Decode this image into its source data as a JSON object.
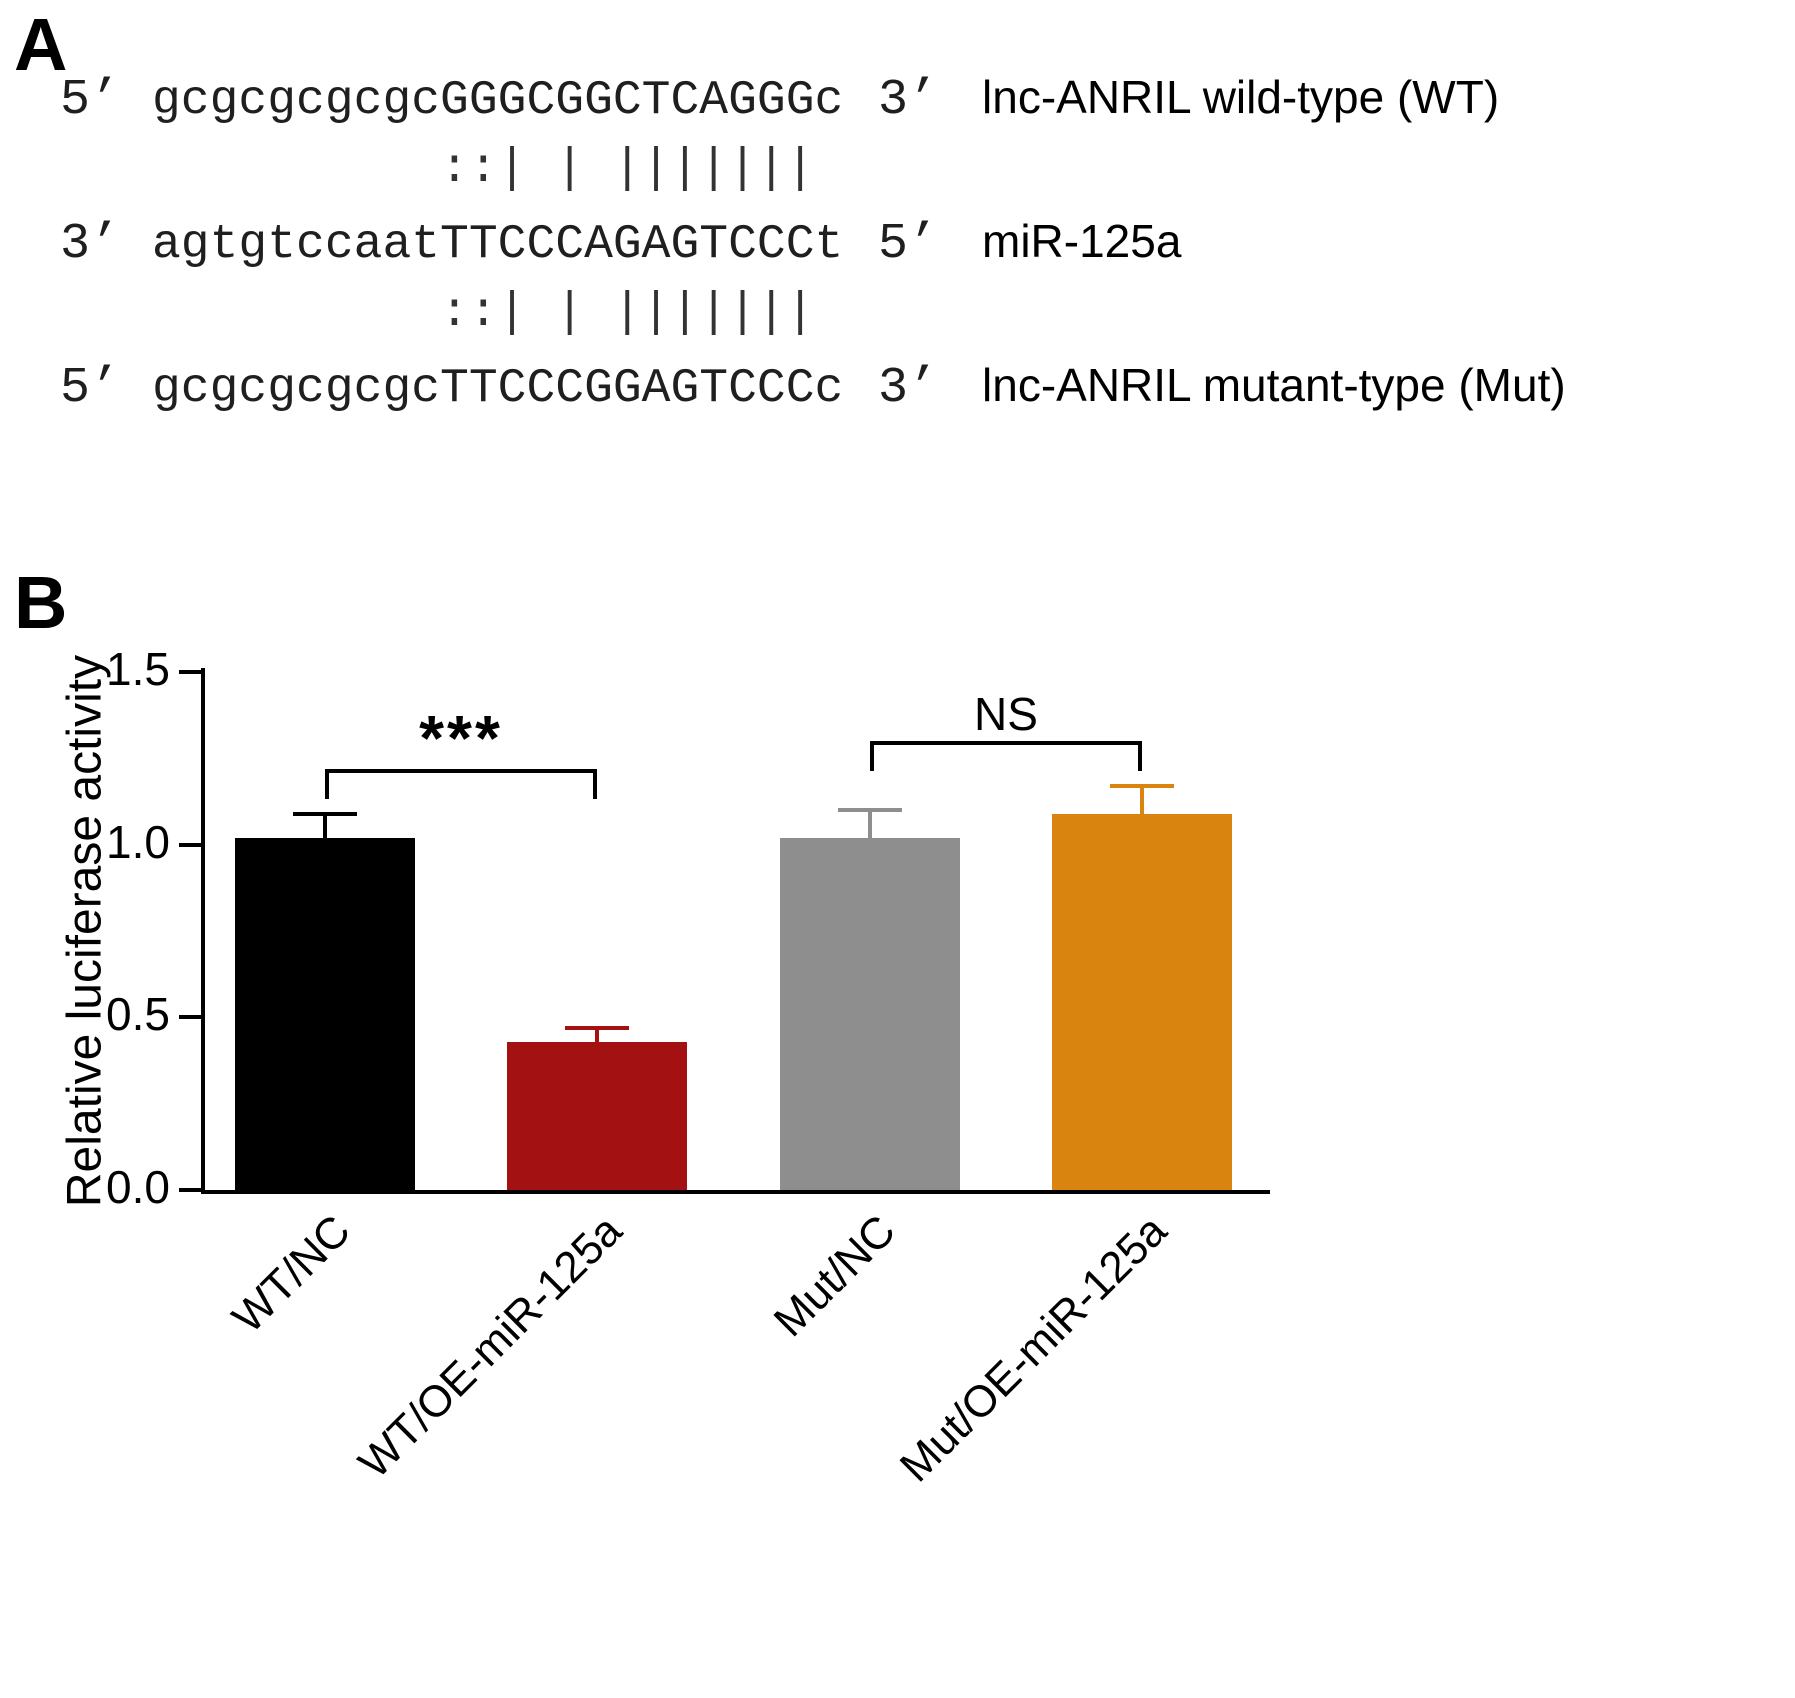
{
  "panelA": {
    "label": "A",
    "rows": [
      {
        "left": "5’",
        "seq": "gcgcgcgcgcGGGCGGCTCAGGGc",
        "right": "3’",
        "name": "lnc-ANRIL wild-type (WT)"
      },
      {
        "align": "          ::| | |||||||"
      },
      {
        "left": "3’",
        "seq": "agtgtccaatTTCCCAGAGTCCCt",
        "right": "5’",
        "name": "miR-125a"
      },
      {
        "align": "          ::| | |||||||"
      },
      {
        "left": "5’",
        "seq": "gcgcgcgcgcTTCCCGGAGTCCCc",
        "right": "3’",
        "name": "lnc-ANRIL mutant-type (Mut)"
      }
    ]
  },
  "panelB": {
    "label": "B"
  },
  "chart_data": {
    "type": "bar",
    "title": "",
    "xlabel": "",
    "ylabel": "Relative luciferase activity",
    "ylim": [
      0,
      1.5
    ],
    "yticks": [
      0,
      0.5,
      1.0,
      1.5
    ],
    "ytick_labels": [
      "0.0",
      "0.5",
      "1.0",
      "1.5"
    ],
    "categories": [
      "WT/NC",
      "WT/OE-miR-125a",
      "Mut/NC",
      "Mut/OE-miR-125a"
    ],
    "values": [
      1.02,
      0.43,
      1.02,
      1.09
    ],
    "errors": [
      0.07,
      0.04,
      0.08,
      0.08
    ],
    "bar_colors": [
      "#000000",
      "#a31112",
      "#8e8e8e",
      "#d8840f"
    ],
    "grid": false,
    "legend": "none",
    "annotations": [
      {
        "label": "***",
        "from": 0,
        "to": 1,
        "y": 1.22
      },
      {
        "label": "NS",
        "from": 2,
        "to": 3,
        "y": 1.3
      }
    ]
  }
}
